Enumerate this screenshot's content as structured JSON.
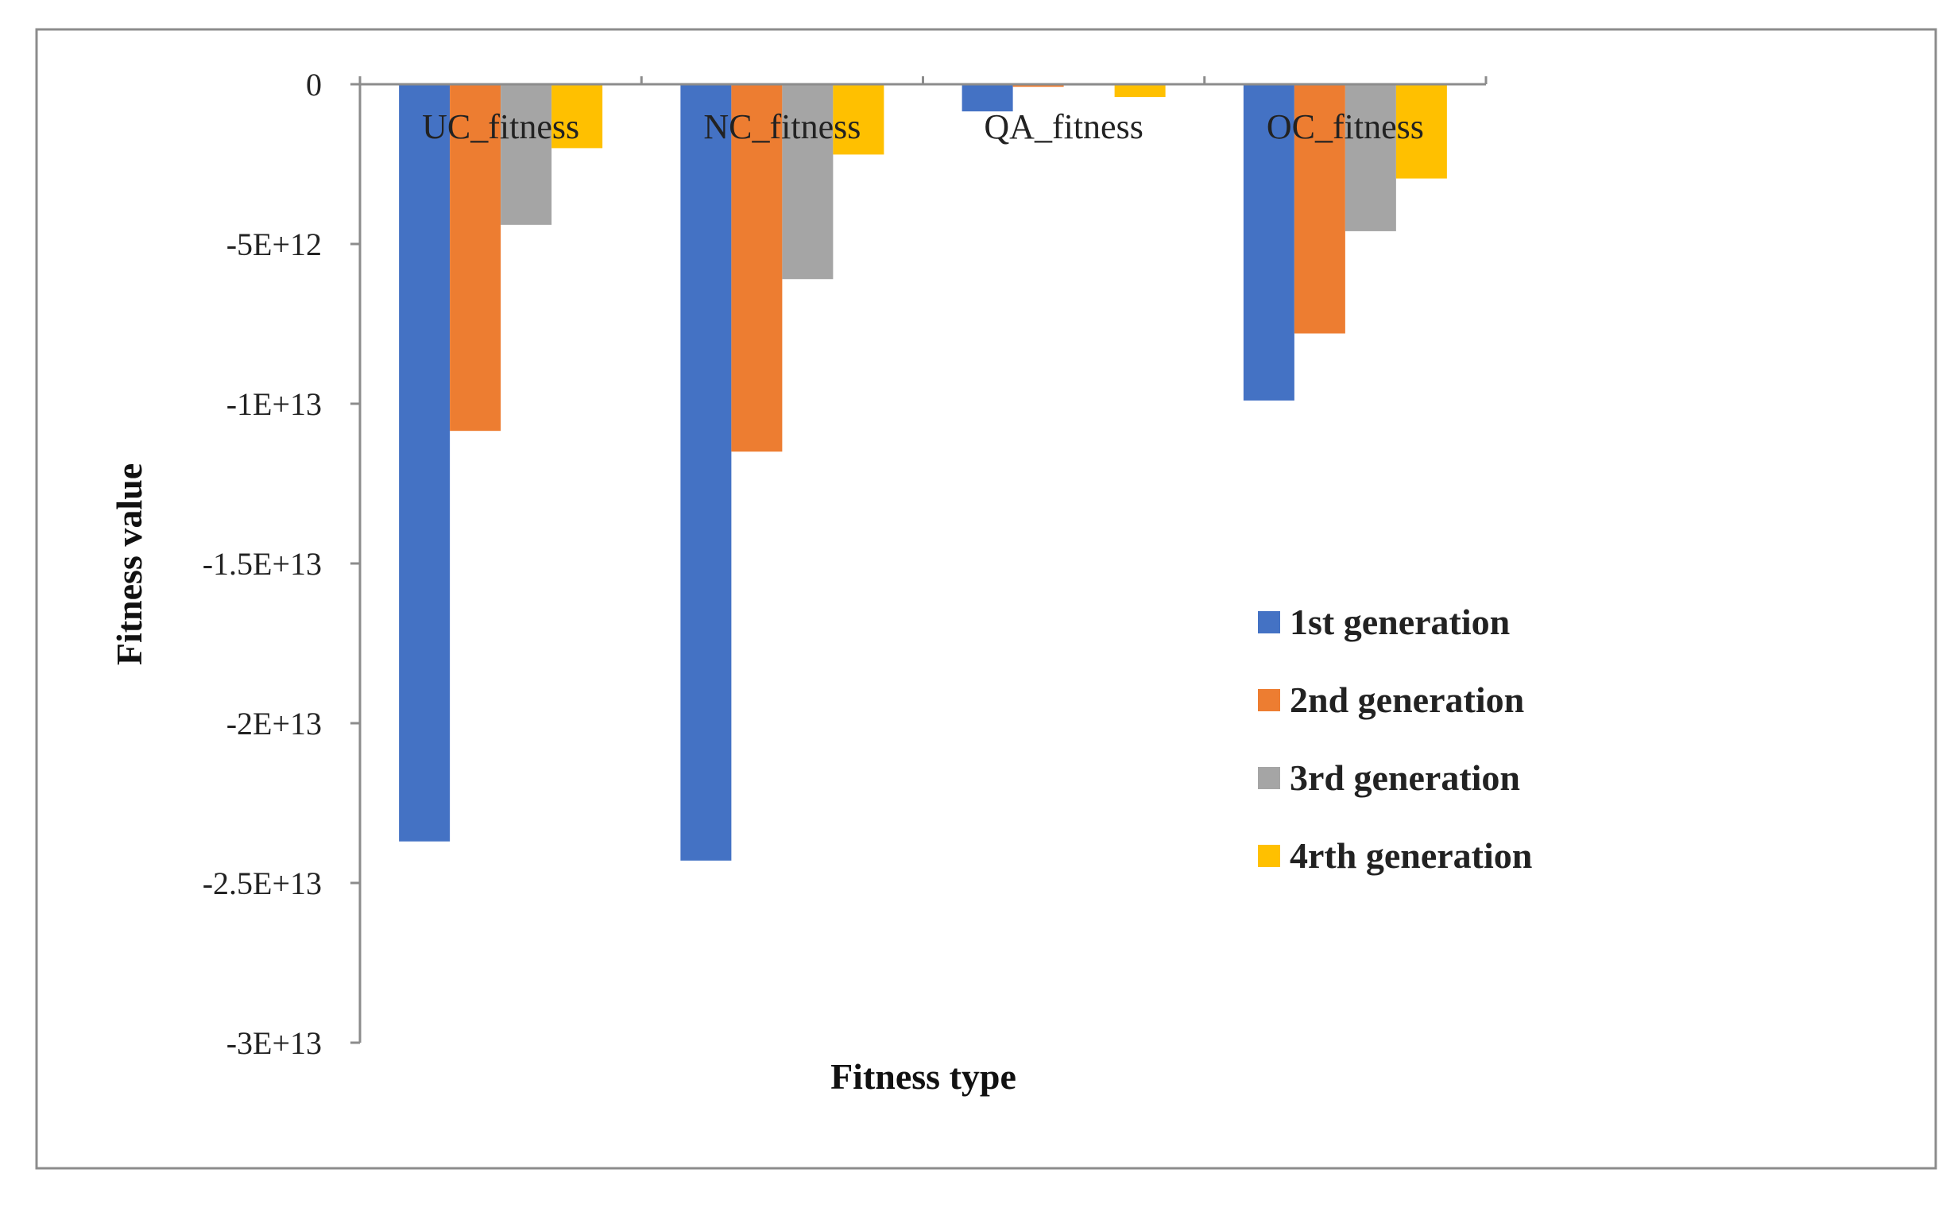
{
  "chart_data": {
    "type": "bar",
    "title": "",
    "xlabel": "Fitness type",
    "ylabel": "Fitness value",
    "ylim": [
      -30000000000000.0,
      0
    ],
    "yticks": [
      0,
      -5000000000000.0,
      -10000000000000.0,
      -15000000000000.0,
      -20000000000000.0,
      -25000000000000.0,
      -30000000000000.0
    ],
    "ytick_labels": [
      "0",
      "-5E+12",
      "-1E+13",
      "-1.5E+13",
      "-2E+13",
      "-2.5E+13",
      "-3E+13"
    ],
    "categories": [
      "UC_fitness",
      "NC_fitness",
      "QA_fitness",
      "OC_fitness"
    ],
    "series": [
      {
        "name": "1st generation",
        "color": "#4472C4",
        "values": [
          -23700000000000.0,
          -24300000000000.0,
          -850000000000.0,
          -9900000000000.0
        ]
      },
      {
        "name": "2nd generation",
        "color": "#ED7D31",
        "values": [
          -10850000000000.0,
          -11500000000000.0,
          -80000000000.0,
          -7800000000000.0
        ]
      },
      {
        "name": "3rd generation",
        "color": "#A5A5A5",
        "values": [
          -4400000000000.0,
          -6100000000000.0,
          -40000000000.0,
          -4600000000000.0
        ]
      },
      {
        "name": "4rth generation",
        "color": "#FFC000",
        "values": [
          -2000000000000.0,
          -2200000000000.0,
          -400000000000.0,
          -2950000000000.0
        ]
      }
    ],
    "legend_position": "right",
    "grid": false
  }
}
